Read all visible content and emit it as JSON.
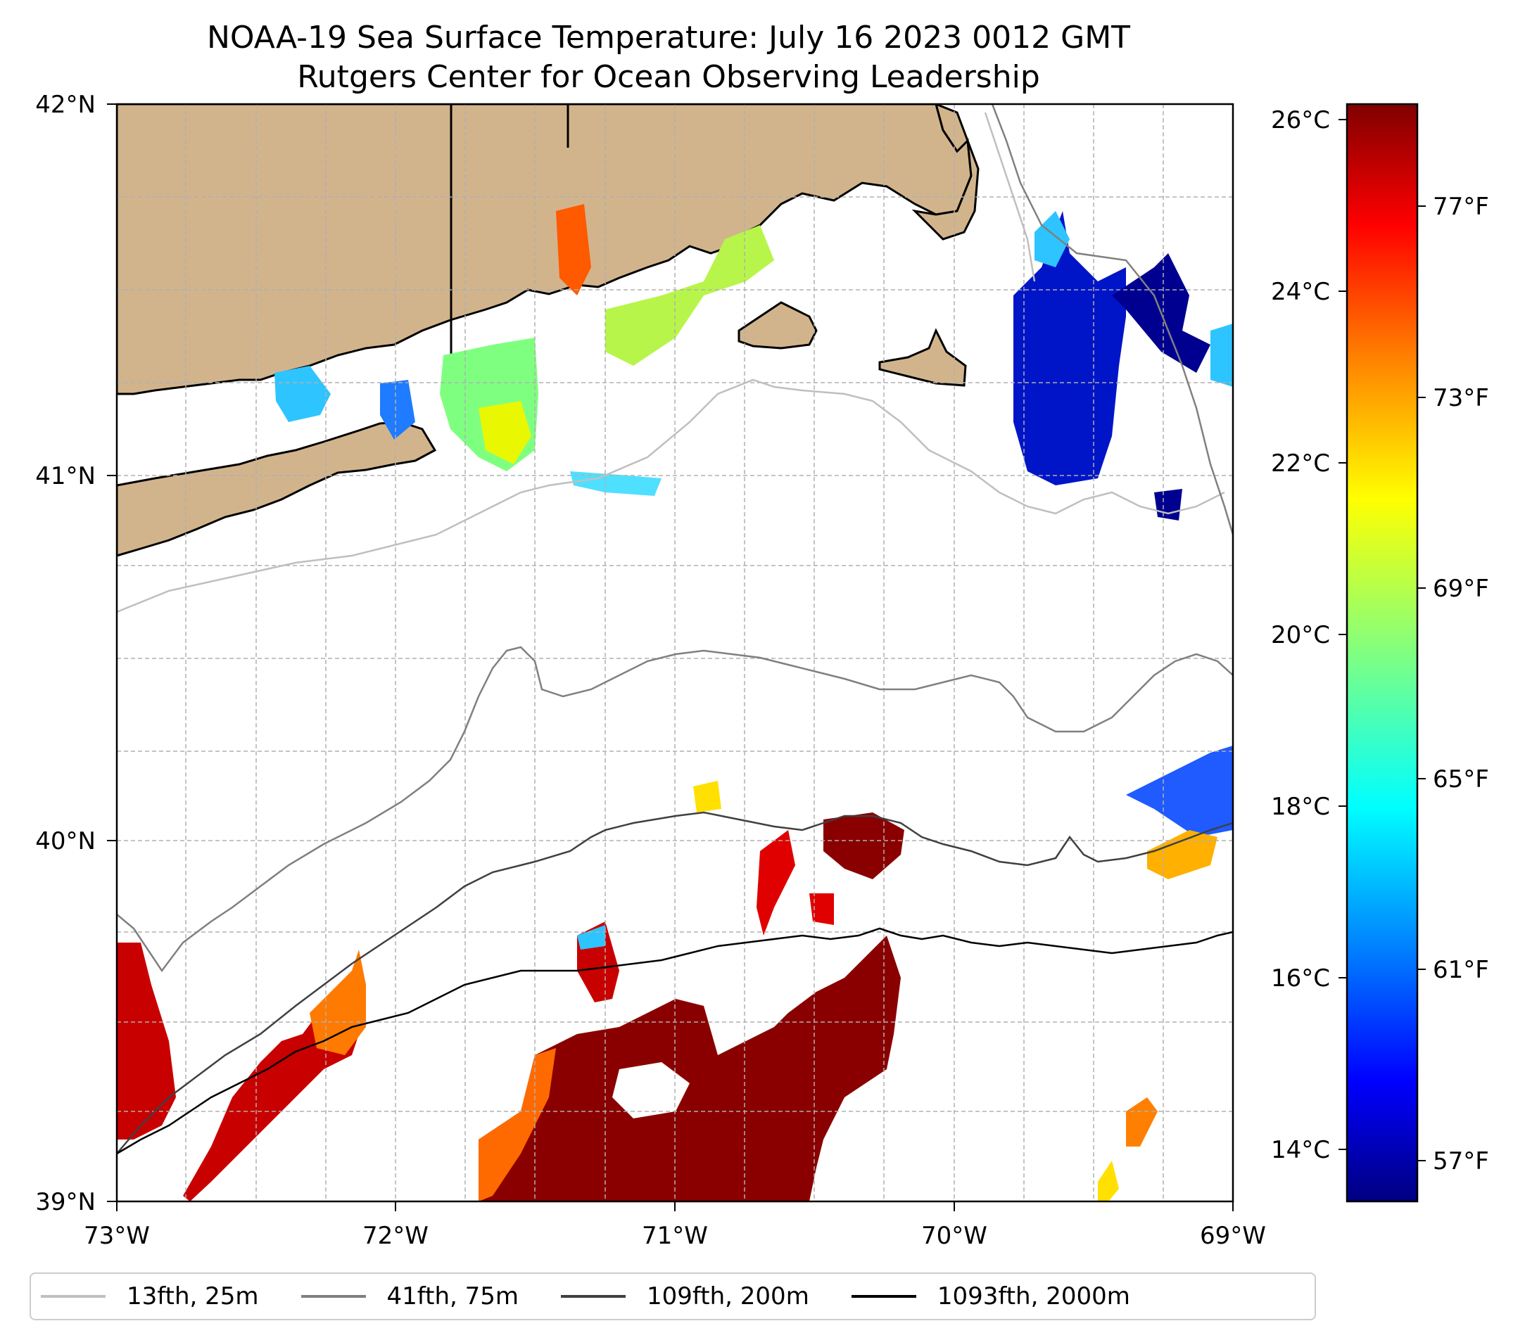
{
  "title": {
    "line1": "NOAA-19 Sea Surface Temperature: July 16 2023 0012 GMT",
    "line2": "Rutgers Center for Ocean Observing Leadership"
  },
  "map": {
    "lon_labels": [
      "73°W",
      "72°W",
      "71°W",
      "70°W",
      "69°W"
    ],
    "lat_labels": [
      "42°N",
      "41°N",
      "40°N",
      "39°N"
    ],
    "land_color": "#d2b48c",
    "coastline_color": "#000000",
    "gridline_color": "#b0b0b0"
  },
  "colorbar": {
    "celsius_labels": [
      "26°C",
      "24°C",
      "22°C",
      "20°C",
      "18°C",
      "16°C",
      "14°C"
    ],
    "fahrenheit_labels": [
      "77°F",
      "73°F",
      "69°F",
      "65°F",
      "61°F",
      "57°F"
    ],
    "colormap": "jet",
    "colors": [
      "#000080",
      "#0000ff",
      "#0080ff",
      "#00ffff",
      "#80ff80",
      "#ffff00",
      "#ff8000",
      "#ff0000",
      "#800000"
    ]
  },
  "legend": {
    "items": [
      {
        "label": "13fth, 25m",
        "color": "#bfbfbf"
      },
      {
        "label": "41fth, 75m",
        "color": "#808080"
      },
      {
        "label": "109fth, 200m",
        "color": "#404040"
      },
      {
        "label": "1093fth, 2000m",
        "color": "#000000"
      }
    ]
  }
}
